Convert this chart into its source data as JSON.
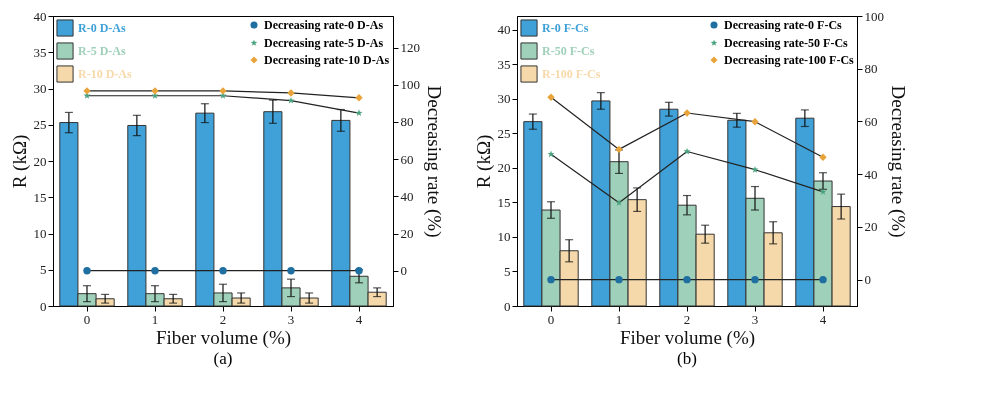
{
  "chart_data": [
    {
      "type": "bar",
      "title": "(a)",
      "xlabel": "Fiber volume (%)",
      "ylabel": "R (kΩ)",
      "y2label": "Decreasing rate (%)",
      "categories": [
        "0",
        "1",
        "2",
        "3",
        "4"
      ],
      "ylim": [
        0,
        40
      ],
      "yticks": [
        0,
        5,
        10,
        15,
        20,
        25,
        30,
        35,
        40
      ],
      "y2lim": [
        -19,
        137
      ],
      "y2ticks": [
        0,
        20,
        40,
        60,
        80,
        100,
        120
      ],
      "legend": "top",
      "grid": false,
      "series": [
        {
          "name": "R-0 D-As",
          "color": "#3fa1d8",
          "values": [
            25.3,
            24.9,
            26.6,
            26.8,
            25.6
          ],
          "errors": [
            1.4,
            1.4,
            1.3,
            1.6,
            1.5
          ]
        },
        {
          "name": "R-5 D-As",
          "color": "#9fd0b9",
          "values": [
            1.7,
            1.7,
            1.8,
            2.5,
            4.1
          ],
          "errors": [
            1.1,
            1.1,
            1.2,
            1.2,
            0.9
          ]
        },
        {
          "name": "R-10 D-As",
          "color": "#f6d9aa",
          "values": [
            1.0,
            1.0,
            1.1,
            1.1,
            1.9
          ],
          "errors": [
            0.6,
            0.6,
            0.7,
            0.7,
            0.6
          ]
        },
        {
          "name": "Decreasing rate-0 D-As",
          "type": "line",
          "axis": "y2",
          "marker": "circle",
          "color": "#1f6fa0",
          "values": [
            0,
            0,
            0,
            0,
            0
          ]
        },
        {
          "name": "Decreasing rate-5 D-As",
          "type": "line",
          "axis": "y2",
          "marker": "star",
          "color": "#4aa37f",
          "values": [
            94.1,
            94.1,
            94.1,
            91.5,
            84.8
          ]
        },
        {
          "name": "Decreasing rate-10 D-As",
          "type": "line",
          "axis": "y2",
          "marker": "diamond",
          "color": "#e8a43a",
          "values": [
            96.7,
            96.7,
            96.7,
            95.6,
            93.0
          ]
        }
      ]
    },
    {
      "type": "bar",
      "title": "(b)",
      "xlabel": "Fiber volume (%)",
      "ylabel": "R (kΩ)",
      "y2label": "Decreasing rate (%)",
      "categories": [
        "0",
        "1",
        "2",
        "3",
        "4"
      ],
      "ylim": [
        0,
        42
      ],
      "yticks": [
        0,
        5,
        10,
        15,
        20,
        25,
        30,
        35,
        40
      ],
      "y2lim": [
        -10,
        100
      ],
      "y2ticks": [
        0,
        20,
        40,
        60,
        80,
        100
      ],
      "legend": "top",
      "grid": false,
      "series": [
        {
          "name": "R-0 F-Cs",
          "color": "#3fa1d8",
          "values": [
            26.7,
            29.7,
            28.5,
            26.9,
            27.2
          ],
          "errors": [
            1.1,
            1.2,
            1.0,
            1.0,
            1.2
          ]
        },
        {
          "name": "R-50 F-Cs",
          "color": "#9fd0b9",
          "values": [
            13.9,
            20.9,
            14.6,
            15.6,
            18.1
          ],
          "errors": [
            1.2,
            1.7,
            1.4,
            1.7,
            1.2
          ]
        },
        {
          "name": "R-100 F-Cs",
          "color": "#f6d9aa",
          "values": [
            8.0,
            15.4,
            10.4,
            10.6,
            14.4
          ],
          "errors": [
            1.6,
            1.7,
            1.3,
            1.6,
            1.8
          ]
        },
        {
          "name": "Decreasing rate-0 F-Cs",
          "type": "line",
          "axis": "y2",
          "marker": "circle",
          "color": "#1f6fa0",
          "values": [
            0,
            0,
            0,
            0,
            0
          ]
        },
        {
          "name": "Decreasing rate-50 F-Cs",
          "type": "line",
          "axis": "y2",
          "marker": "star",
          "color": "#4aa37f",
          "values": [
            47.6,
            29.2,
            48.6,
            41.7,
            33.3
          ]
        },
        {
          "name": "Decreasing rate-100 F-Cs",
          "type": "line",
          "axis": "y2",
          "marker": "diamond",
          "color": "#e8a43a",
          "values": [
            69.2,
            49.4,
            63.2,
            59.9,
            46.4
          ]
        }
      ]
    }
  ]
}
